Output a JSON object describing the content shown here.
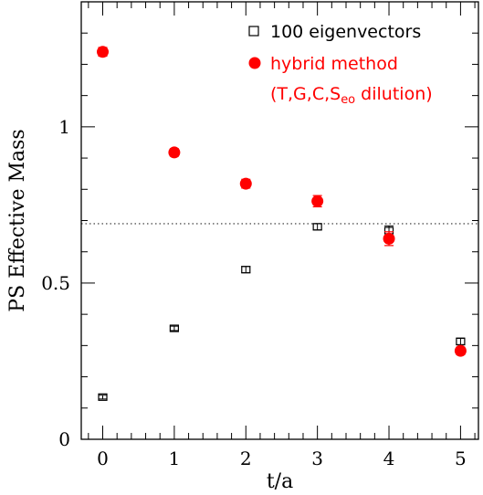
{
  "chart_data": {
    "type": "scatter",
    "xlabel": "t/a",
    "ylabel": "PS Effective Mass",
    "xlim": [
      -0.3,
      5.25
    ],
    "ylim": [
      0,
      1.4
    ],
    "x_ticks": [
      0,
      1,
      2,
      3,
      4,
      5
    ],
    "y_ticks": [
      0,
      0.5,
      1
    ],
    "x_tick_labels": [
      "0",
      "1",
      "2",
      "3",
      "4",
      "5"
    ],
    "y_tick_labels": [
      "0",
      "0.5",
      "1"
    ],
    "reference_line": {
      "y": 0.69,
      "style": "dotted",
      "color": "#555555"
    },
    "legend_position": "top-right",
    "series": [
      {
        "name": "100 eigenvectors",
        "marker": "open-square",
        "color": "#000000",
        "points": [
          {
            "x": 0,
            "y": 0.135,
            "err": 0.006
          },
          {
            "x": 1,
            "y": 0.355,
            "err": 0.007
          },
          {
            "x": 2,
            "y": 0.543,
            "err": 0.01
          },
          {
            "x": 3,
            "y": 0.68,
            "err": 0.01
          },
          {
            "x": 4,
            "y": 0.668,
            "err": 0.015
          },
          {
            "x": 5,
            "y": 0.313,
            "err": 0.011
          }
        ]
      },
      {
        "name": "hybrid method",
        "name_line2_prefix": "(T,G,C,S",
        "name_line2_subscript": "eo",
        "name_line2_suffix": " dilution)",
        "marker": "filled-circle",
        "color": "#ff0000",
        "points": [
          {
            "x": 0,
            "y": 1.24,
            "err": 0.014
          },
          {
            "x": 1,
            "y": 0.918,
            "err": 0.012
          },
          {
            "x": 2,
            "y": 0.818,
            "err": 0.014
          },
          {
            "x": 3,
            "y": 0.762,
            "err": 0.018
          },
          {
            "x": 4,
            "y": 0.642,
            "err": 0.022
          },
          {
            "x": 5,
            "y": 0.283,
            "err": 0.012
          }
        ]
      }
    ]
  }
}
